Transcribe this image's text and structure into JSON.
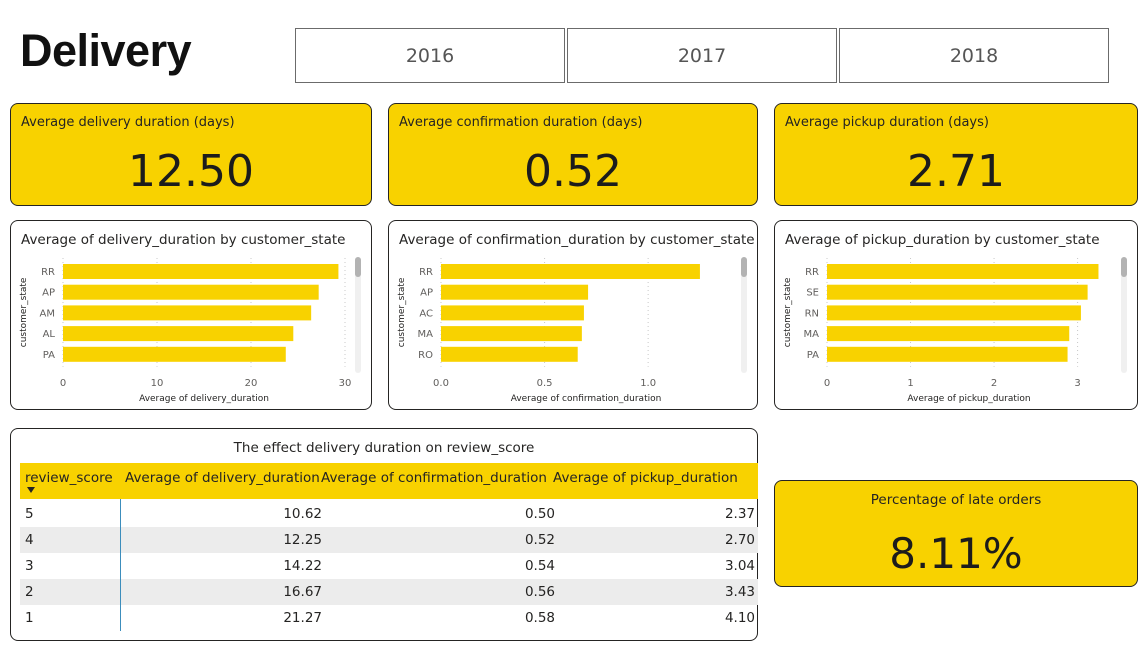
{
  "page": {
    "title": "Delivery"
  },
  "slicer": {
    "years": [
      "2016",
      "2017",
      "2018"
    ]
  },
  "kpis": [
    {
      "label": "Average delivery duration (days)",
      "value": "12.50"
    },
    {
      "label": "Average confirmation duration (days)",
      "value": "0.52"
    },
    {
      "label": "Average pickup duration (days)",
      "value": "2.71"
    }
  ],
  "late_orders": {
    "label": "Percentage of late orders",
    "value": "8.11%"
  },
  "colors": {
    "accent": "#f8d200",
    "border": "#252423",
    "row_alt": "#ececec"
  },
  "table": {
    "title": "The effect delivery duration on review_score",
    "columns": [
      "review_score",
      "Average of delivery_duration",
      "Average of confirmation_duration",
      "Average of pickup_duration"
    ],
    "sort": "review_score descending",
    "rows": [
      [
        "5",
        "10.62",
        "0.50",
        "2.37"
      ],
      [
        "4",
        "12.25",
        "0.52",
        "2.70"
      ],
      [
        "3",
        "14.22",
        "0.54",
        "3.04"
      ],
      [
        "2",
        "16.67",
        "0.56",
        "3.43"
      ],
      [
        "1",
        "21.27",
        "0.58",
        "4.10"
      ]
    ]
  },
  "chart_data": [
    {
      "type": "bar",
      "orientation": "horizontal",
      "title": "Average of delivery_duration by customer_state",
      "xlabel": "Average of delivery_duration",
      "ylabel": "customer_state",
      "categories": [
        "RR",
        "AP",
        "AM",
        "AL",
        "PA"
      ],
      "values": [
        29.3,
        27.2,
        26.4,
        24.5,
        23.7
      ],
      "xlim": [
        0,
        30
      ],
      "xticks": [
        0,
        10,
        20,
        30
      ],
      "xtick_labels": [
        "0",
        "10",
        "20",
        "30"
      ],
      "grid": true,
      "color": "#f8d200"
    },
    {
      "type": "bar",
      "orientation": "horizontal",
      "title": "Average of confirmation_duration by customer_state",
      "xlabel": "Average of confirmation_duration",
      "ylabel": "customer_state",
      "categories": [
        "RR",
        "AP",
        "AC",
        "MA",
        "RO"
      ],
      "values": [
        1.25,
        0.71,
        0.69,
        0.68,
        0.66
      ],
      "xlim": [
        0,
        1.4
      ],
      "xticks": [
        0,
        0.5,
        1.0
      ],
      "xtick_labels": [
        "0.0",
        "0.5",
        "1.0"
      ],
      "grid": true,
      "color": "#f8d200"
    },
    {
      "type": "bar",
      "orientation": "horizontal",
      "title": "Average of pickup_duration by customer_state",
      "xlabel": "Average of pickup_duration",
      "ylabel": "customer_state",
      "categories": [
        "RR",
        "SE",
        "RN",
        "MA",
        "PA"
      ],
      "values": [
        3.25,
        3.12,
        3.04,
        2.9,
        2.88
      ],
      "xlim": [
        0,
        3.4
      ],
      "xticks": [
        0,
        1,
        2,
        3
      ],
      "xtick_labels": [
        "0",
        "1",
        "2",
        "3"
      ],
      "grid": true,
      "color": "#f8d200"
    }
  ]
}
